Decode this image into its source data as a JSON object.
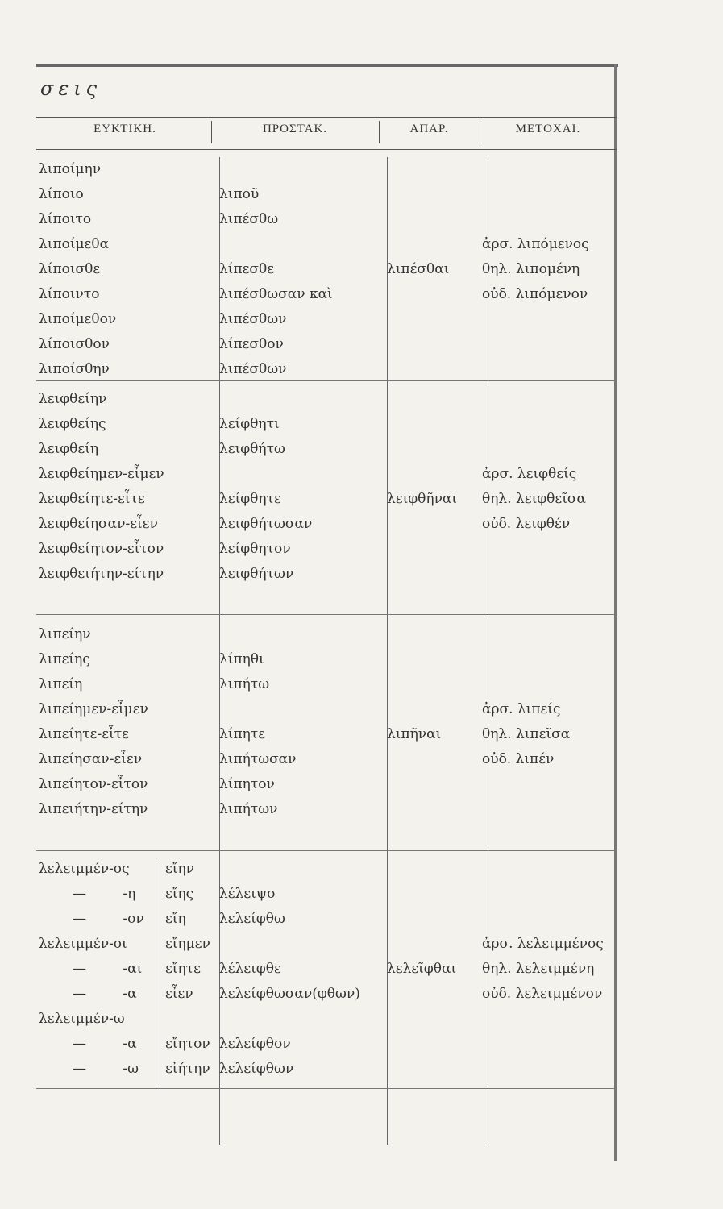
{
  "header": {
    "title": "σεις"
  },
  "table": {
    "columns": [
      "ΕΥΚΤΙΚΗ.",
      "ΠΡΟΣΤΑΚ.",
      "ΑΠΑΡ.",
      "ΜΕΤΟΧΑΙ."
    ],
    "sections": [
      {
        "rows": [
          {
            "opt": "λιποίμην"
          },
          {
            "opt": "λίποιο",
            "imp": "λιποῦ"
          },
          {
            "opt": "λίποιτο",
            "imp": "λιπέσθω"
          },
          {
            "opt": "λιποίμεθα",
            "part": "ἀρσ. λιπόμενος"
          },
          {
            "opt": "λίποισθε",
            "imp": "λίπεσθε",
            "inf": "λιπέσθαι",
            "part": "θηλ. λιπομένη"
          },
          {
            "opt": "λίποιντο",
            "imp": "λιπέσθωσαν καὶ",
            "part": "οὐδ. λιπόμενον"
          },
          {
            "opt": "λιποίμεθον",
            "imp": "λιπέσθων"
          },
          {
            "opt": "λίποισθον",
            "imp": "λίπεσθον"
          },
          {
            "opt": "λιποίσθην",
            "imp": "λιπέσθων"
          }
        ]
      },
      {
        "rows": [
          {
            "opt": "λειφθείην"
          },
          {
            "opt": "λειφθείης",
            "imp": "λείφθητι"
          },
          {
            "opt": "λειφθείη",
            "imp": "λειφθήτω"
          },
          {
            "opt": "λειφθείημεν-εἶμεν",
            "part": "ἀρσ. λειφθείς"
          },
          {
            "opt": "λειφθείητε-εἶτε",
            "imp": "λείφθητε",
            "inf": "λειφθῆναι",
            "part": "θηλ. λειφθεῖσα"
          },
          {
            "opt": "λειφθείησαν-εἶεν",
            "imp": "λειφθήτωσαν",
            "part": "οὐδ. λειφθέν"
          },
          {
            "opt": "λειφθείητον-εἶτον",
            "imp": "λείφθητον"
          },
          {
            "opt": "λειφθειήτην-είτην",
            "imp": "λειφθήτων"
          }
        ]
      },
      {
        "rows": [
          {
            "opt": "λιπείην"
          },
          {
            "opt": "λιπείης",
            "imp": "λίπηθι"
          },
          {
            "opt": "λιπείη",
            "imp": "λιπήτω"
          },
          {
            "opt": "λιπείημεν-εἶμεν",
            "part": "ἀρσ. λιπείς"
          },
          {
            "opt": "λιπείητε-εἶτε",
            "imp": "λίπητε",
            "inf": "λιπῆναι",
            "part": "θηλ. λιπεῖσα"
          },
          {
            "opt": "λιπείησαν-εἶεν",
            "imp": "λιπήτωσαν",
            "part": "οὐδ. λιπέν"
          },
          {
            "opt": "λιπείητον-εἶτον",
            "imp": "λίπητον"
          },
          {
            "opt": "λιπειήτην-είτην",
            "imp": "λιπήτων"
          }
        ]
      },
      {
        "rows": [
          {
            "opt": "λελειμμέν-ος",
            "opt2": "εἴην"
          },
          {
            "opt": "— -η",
            "opt2": "εἴης",
            "imp": "λέλειψο"
          },
          {
            "opt": "— -ον",
            "opt2": "εἴη",
            "imp": "λελείφθω"
          },
          {
            "opt": "λελειμμέν-οι",
            "opt2": "εἴημεν",
            "part": "ἀρσ. λελειμμένος"
          },
          {
            "opt": "— -αι",
            "opt2": "εἴητε",
            "imp": "λέλειφθε",
            "inf": "λελεῖφθαι",
            "part": "θηλ. λελειμμένη"
          },
          {
            "opt": "— -α",
            "opt2": "εἶεν",
            "imp": "λελείφθωσαν(φθων)",
            "part": "οὐδ. λελειμμένον"
          },
          {
            "opt": "λελειμμέν-ω"
          },
          {
            "opt": "— -α",
            "opt2": "εἴητον",
            "imp": "λελείφθον"
          },
          {
            "opt": "— -ω",
            "opt2": "εἰήτην",
            "imp": "λελείφθων"
          }
        ]
      }
    ]
  }
}
